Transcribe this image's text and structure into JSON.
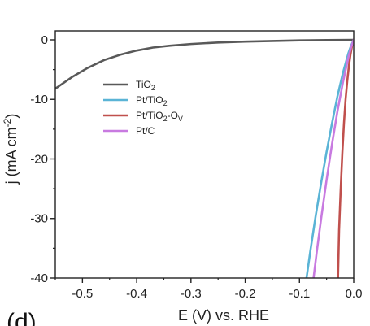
{
  "panel_label": "(d)",
  "chart_data": {
    "type": "line",
    "title": "",
    "xlabel": "E (V) vs. RHE",
    "ylabel_parts": [
      "j (mA cm",
      "-2",
      ")"
    ],
    "xlim": [
      -0.55,
      0.0
    ],
    "ylim": [
      -40,
      1.5
    ],
    "x_ticks": [
      -0.5,
      -0.4,
      -0.3,
      -0.2,
      -0.1,
      0.0
    ],
    "x_tick_labels": [
      "-0.5",
      "-0.4",
      "-0.3",
      "-0.2",
      "-0.1",
      "0.0"
    ],
    "y_ticks": [
      0,
      -10,
      -20,
      -30,
      -40
    ],
    "y_tick_labels": [
      "0",
      "-10",
      "-20",
      "-30",
      "-40"
    ],
    "legend_position": "upper-left inside plot",
    "series": [
      {
        "name_parts": [
          {
            "t": "TiO"
          },
          {
            "t": "2",
            "sub": true
          }
        ],
        "color": "#595959",
        "x": [
          -0.55,
          -0.52,
          -0.49,
          -0.46,
          -0.43,
          -0.4,
          -0.37,
          -0.34,
          -0.3,
          -0.25,
          -0.2,
          -0.15,
          -0.1,
          -0.05,
          0.0
        ],
        "y": [
          -8.2,
          -6.3,
          -4.7,
          -3.4,
          -2.5,
          -1.8,
          -1.3,
          -1.0,
          -0.7,
          -0.45,
          -0.3,
          -0.2,
          -0.1,
          -0.05,
          0.0
        ]
      },
      {
        "name_parts": [
          {
            "t": "Pt/TiO"
          },
          {
            "t": "2",
            "sub": true
          }
        ],
        "color": "#5ab4d6",
        "x": [
          -0.087,
          -0.08,
          -0.07,
          -0.06,
          -0.05,
          -0.04,
          -0.03,
          -0.02,
          -0.01,
          -0.005,
          0.0
        ],
        "y": [
          -40,
          -35.5,
          -29.5,
          -24.0,
          -18.8,
          -14.0,
          -9.5,
          -5.6,
          -2.3,
          -1.0,
          0.0
        ]
      },
      {
        "name_parts": [
          {
            "t": "Pt/TiO"
          },
          {
            "t": "2",
            "sub": true
          },
          {
            "t": "-O"
          },
          {
            "t": "V",
            "sub": true
          }
        ],
        "color": "#c0504d",
        "x": [
          -0.029,
          -0.027,
          -0.024,
          -0.021,
          -0.018,
          -0.015,
          -0.012,
          -0.009,
          -0.006,
          -0.003,
          0.0
        ],
        "y": [
          -40,
          -32.0,
          -25.0,
          -19.0,
          -14.0,
          -10.0,
          -7.0,
          -4.5,
          -2.5,
          -1.0,
          0.0
        ]
      },
      {
        "name_parts": [
          {
            "t": "Pt/C"
          }
        ],
        "color": "#c87ae0",
        "x": [
          -0.074,
          -0.068,
          -0.06,
          -0.05,
          -0.04,
          -0.03,
          -0.02,
          -0.01,
          -0.005,
          0.0
        ],
        "y": [
          -40,
          -35.5,
          -30.0,
          -23.5,
          -17.5,
          -12.0,
          -7.2,
          -3.0,
          -1.3,
          0.0
        ]
      }
    ]
  }
}
